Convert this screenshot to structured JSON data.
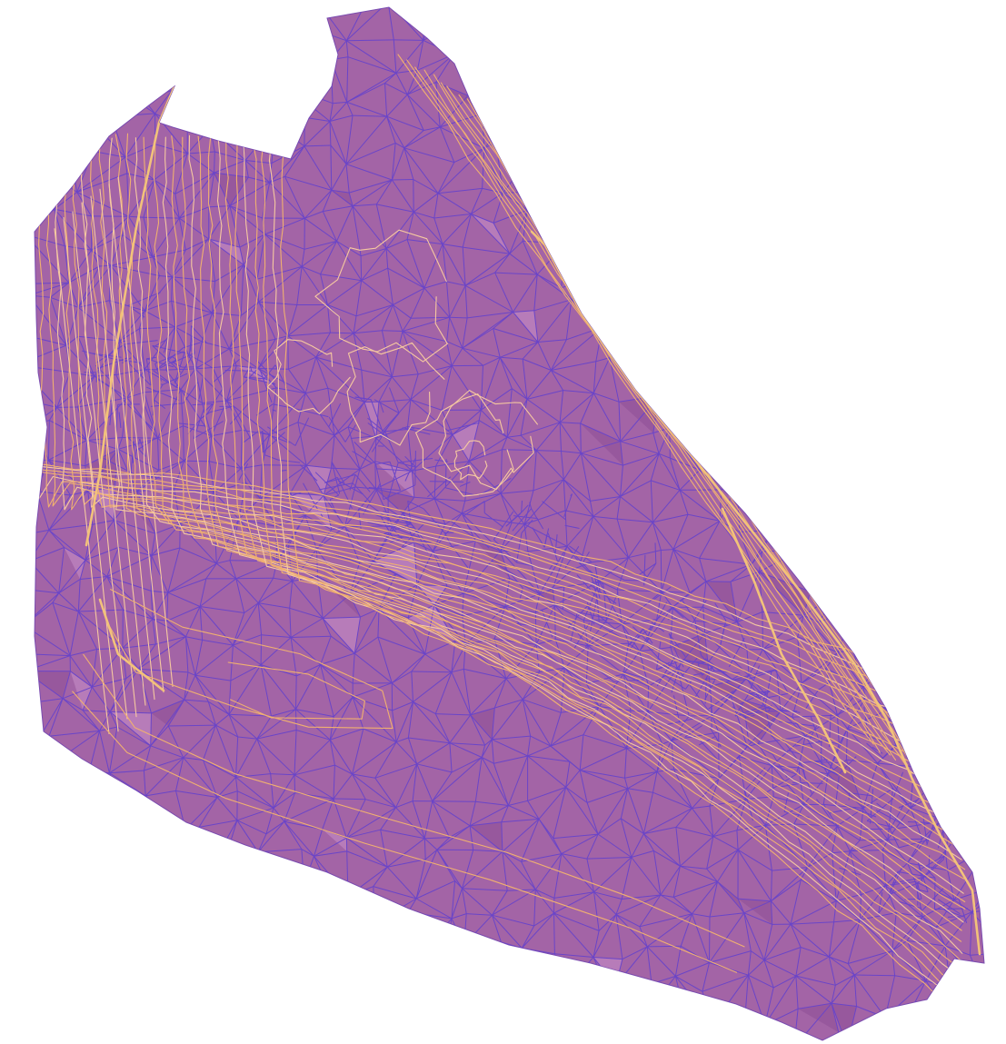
{
  "map": {
    "layers": [
      {
        "name": "tin-surface",
        "kind": "surface-fill"
      },
      {
        "name": "tin-triangles",
        "kind": "triangulation-edges"
      },
      {
        "name": "contours",
        "kind": "contour-lines"
      }
    ],
    "colors": {
      "background": "#ffffff",
      "surface_fill": "#a364a6",
      "surface_fill_light": "#c88fc8",
      "surface_fill_dark": "#8e4f95",
      "triangle_edge": "#6a45c8",
      "contour_line": "#f0b070",
      "contour_line_light": "#f6c9a0",
      "contour_highlight": "#f2c27a"
    },
    "legend_visible": false,
    "labels_visible": false
  }
}
